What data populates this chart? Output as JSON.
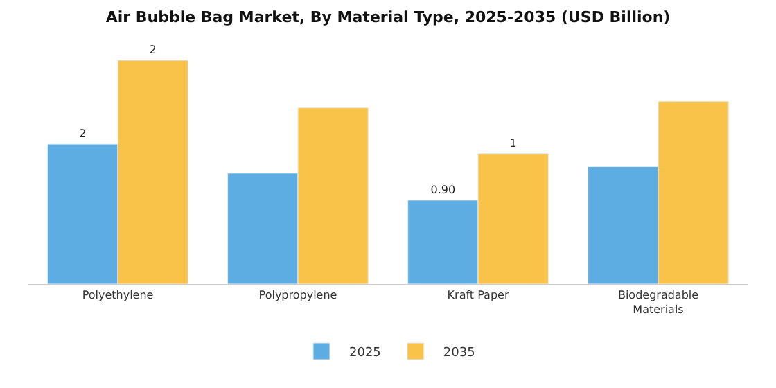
{
  "chart_data": {
    "type": "bar",
    "title": "Air Bubble Bag Market, By Material Type, 2025-2035 (USD Billion)",
    "categories": [
      "Polyethylene",
      "Polypropylene",
      "Kraft Paper",
      "Biodegradable Materials"
    ],
    "tick_labels": "x",
    "legend": "bottom",
    "series": [
      {
        "name": "2025",
        "color": "#5dade2",
        "values": [
          1.5,
          1.19,
          0.9,
          1.26
        ],
        "value_labels": [
          "2",
          null,
          "0.90",
          null
        ]
      },
      {
        "name": "2035",
        "color": "#f9c34a",
        "values": [
          2.4,
          1.89,
          1.4,
          1.96
        ],
        "value_labels": [
          "2",
          null,
          "1",
          null
        ]
      }
    ]
  }
}
